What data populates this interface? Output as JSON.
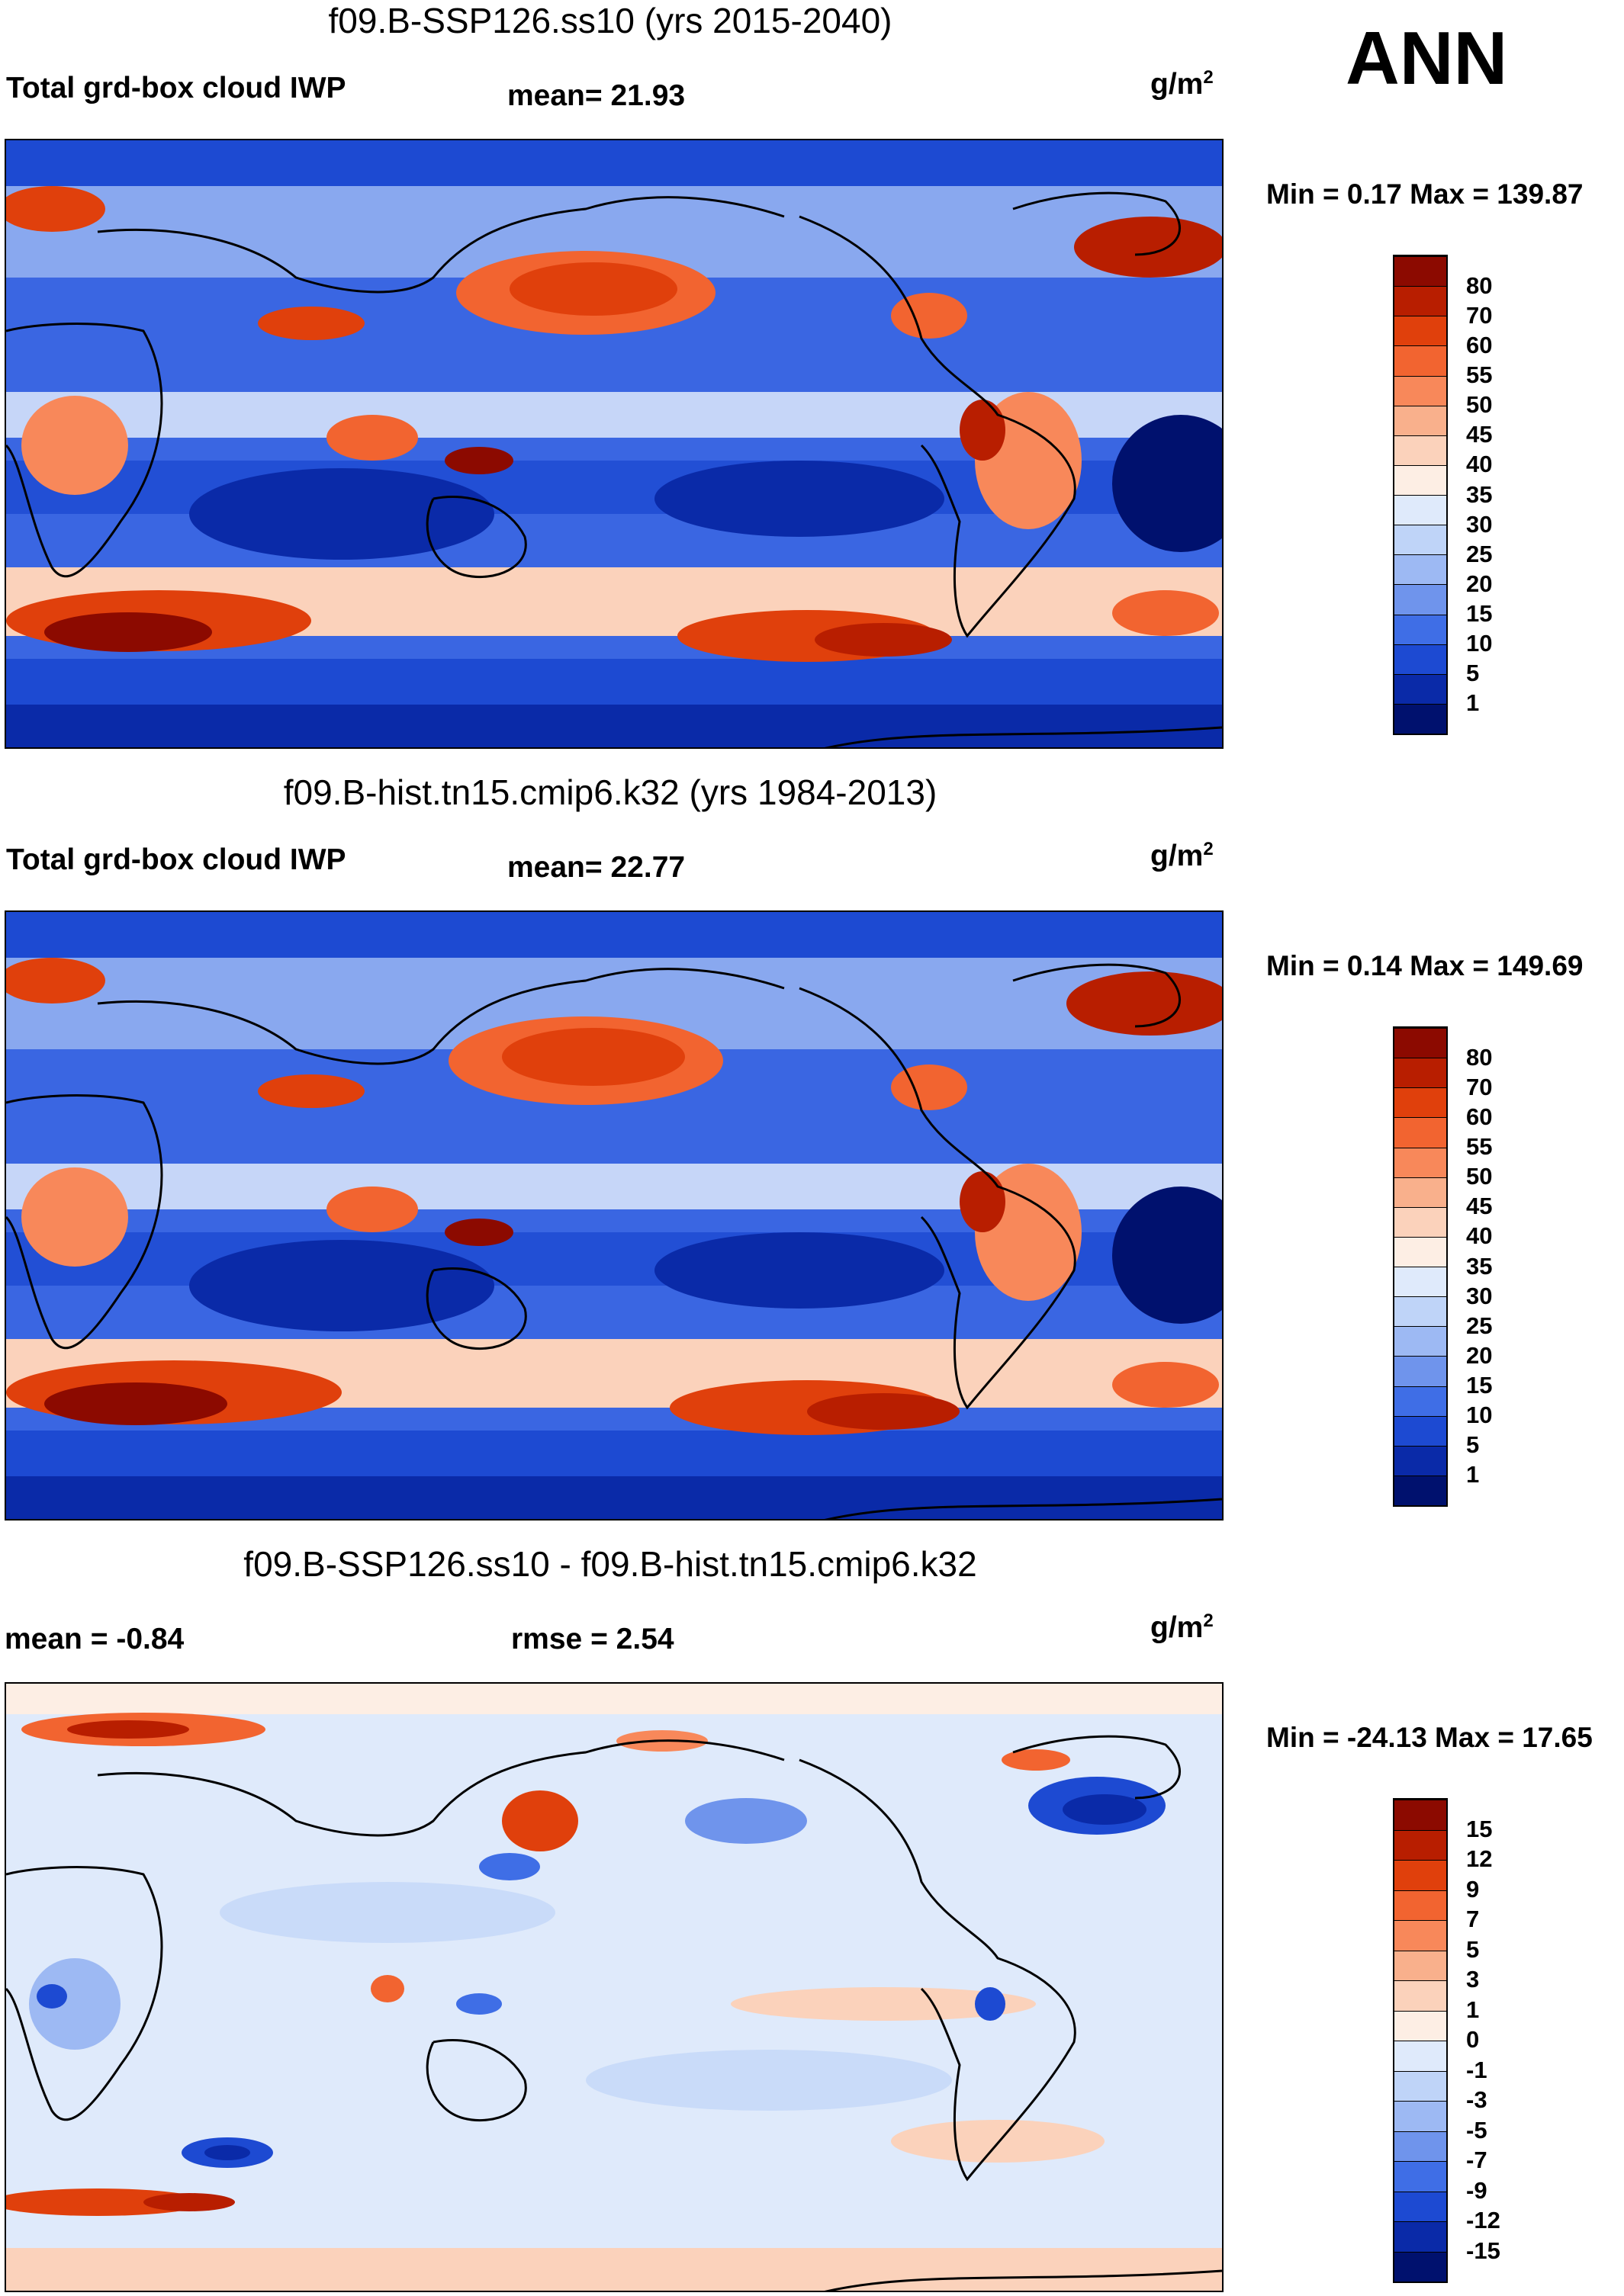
{
  "season": "ANN",
  "panels": [
    {
      "title": "f09.B-SSP126.ss10 (yrs 2015-2040)",
      "left_label": "Total grd-box cloud IWP",
      "stat_label": "mean=  21.93",
      "units_base": "g/m",
      "units_exp": "2",
      "minmax": "Min =   0.17 Max = 139.87",
      "levels": [
        "80",
        "70",
        "60",
        "55",
        "50",
        "45",
        "40",
        "35",
        "30",
        "25",
        "20",
        "15",
        "10",
        "5",
        "1"
      ],
      "colors": [
        "#8c0a00",
        "#b81e00",
        "#e0400c",
        "#f26430",
        "#f8885a",
        "#f9b08c",
        "#fbd2bb",
        "#fdeee4",
        "#dfeafb",
        "#bfd4f8",
        "#9db9f3",
        "#6f94ec",
        "#3f6ee6",
        "#1d4ad2",
        "#0a2aa8",
        "#00116e"
      ]
    },
    {
      "title": "f09.B-hist.tn15.cmip6.k32 (yrs 1984-2013)",
      "left_label": "Total grd-box cloud IWP",
      "stat_label": "mean=  22.77",
      "units_base": "g/m",
      "units_exp": "2",
      "minmax": "Min =   0.14 Max = 149.69",
      "levels": [
        "80",
        "70",
        "60",
        "55",
        "50",
        "45",
        "40",
        "35",
        "30",
        "25",
        "20",
        "15",
        "10",
        "5",
        "1"
      ],
      "colors": [
        "#8c0a00",
        "#b81e00",
        "#e0400c",
        "#f26430",
        "#f8885a",
        "#f9b08c",
        "#fbd2bb",
        "#fdeee4",
        "#dfeafb",
        "#bfd4f8",
        "#9db9f3",
        "#6f94ec",
        "#3f6ee6",
        "#1d4ad2",
        "#0a2aa8",
        "#00116e"
      ]
    },
    {
      "title": "f09.B-SSP126.ss10 - f09.B-hist.tn15.cmip6.k32",
      "left_label": "mean =  -0.84",
      "stat_label": "rmse =    2.54",
      "units_base": "g/m",
      "units_exp": "2",
      "minmax": "Min = -24.13 Max =  17.65",
      "levels": [
        "15",
        "12",
        "9",
        "7",
        "5",
        "3",
        "1",
        "0",
        "-1",
        "-3",
        "-5",
        "-7",
        "-9",
        "-12",
        "-15"
      ],
      "colors": [
        "#8c0a00",
        "#b81e00",
        "#e0400c",
        "#f26430",
        "#f8885a",
        "#f9b08c",
        "#fbd2bb",
        "#fdeee4",
        "#dfeafb",
        "#bfd4f8",
        "#9db9f3",
        "#6f94ec",
        "#3f6ee6",
        "#1d4ad2",
        "#0a2aa8",
        "#00116e"
      ]
    }
  ]
}
